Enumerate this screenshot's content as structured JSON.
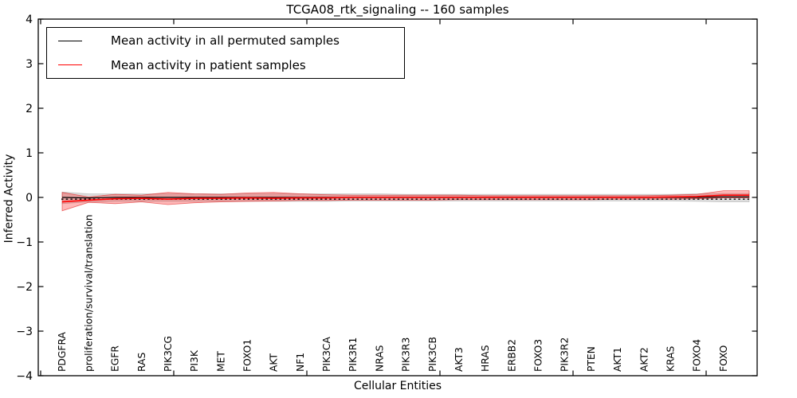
{
  "figure": {
    "title": "TCGA08_rtk_signaling -- 160 samples",
    "xlabel": "Cellular Entities",
    "ylabel": "Inferred Activity"
  },
  "legend": {
    "position": "upper left",
    "items": [
      {
        "label": "Mean activity in all permuted samples",
        "color": "#000000"
      },
      {
        "label": "Mean activity in patient samples",
        "color": "#ff0000"
      }
    ]
  },
  "chart_data": {
    "type": "line",
    "title": "TCGA08_rtk_signaling -- 160 samples",
    "xlabel": "Cellular Entities",
    "ylabel": "Inferred Activity",
    "ylim": [
      -4,
      4
    ],
    "ytick_labels": [
      "4",
      "3",
      "2",
      "1",
      "0",
      "−1",
      "−2",
      "−3",
      "−4"
    ],
    "grid": false,
    "legend_position": "upper left",
    "categories": [
      "PDGFRA",
      "proliferation/survival/translation",
      "EGFR",
      "RAS",
      "PIK3CG",
      "PI3K",
      "MET",
      "FOXO1",
      "AKT",
      "NF1",
      "PIK3CA",
      "PIK3R1",
      "NRAS",
      "PIK3R3",
      "PIK3CB",
      "AKT3",
      "HRAS",
      "ERBB2",
      "FOXO3",
      "PIK3R2",
      "PTEN",
      "AKT1",
      "AKT2",
      "KRAS",
      "FOXO4",
      "FOXO"
    ],
    "series": [
      {
        "name": "Mean activity in all permuted samples",
        "color": "#000000",
        "values": [
          0.0,
          -0.01,
          0.0,
          0.0,
          0.0,
          0.0,
          0.0,
          0.0,
          0.0,
          0.0,
          0.0,
          0.0,
          0.0,
          0.0,
          0.0,
          0.0,
          0.0,
          0.0,
          0.0,
          0.0,
          0.0,
          0.0,
          0.0,
          0.0,
          0.0,
          0.01
        ]
      },
      {
        "name": "Mean activity in patient samples",
        "color": "#ff0000",
        "values": [
          -0.1,
          -0.06,
          -0.03,
          -0.02,
          -0.04,
          -0.02,
          -0.02,
          -0.01,
          -0.02,
          -0.01,
          -0.01,
          0.0,
          0.0,
          0.0,
          0.0,
          0.0,
          0.0,
          0.0,
          0.0,
          0.0,
          0.0,
          0.0,
          0.0,
          0.01,
          0.02,
          0.05
        ]
      }
    ],
    "bands": [
      {
        "name": "permuted samples spread",
        "fill": "rgba(0,0,0,0.13)",
        "edge": "rgba(0,0,0,0.18)",
        "upper": [
          0.12,
          0.08,
          0.08,
          0.08,
          0.08,
          0.08,
          0.08,
          0.08,
          0.08,
          0.08,
          0.08,
          0.08,
          0.08,
          0.07,
          0.07,
          0.07,
          0.07,
          0.07,
          0.07,
          0.07,
          0.07,
          0.07,
          0.07,
          0.07,
          0.08,
          0.09
        ],
        "lower": [
          -0.14,
          -0.1,
          -0.09,
          -0.09,
          -0.09,
          -0.09,
          -0.09,
          -0.09,
          -0.09,
          -0.09,
          -0.09,
          -0.08,
          -0.08,
          -0.08,
          -0.08,
          -0.08,
          -0.08,
          -0.08,
          -0.08,
          -0.08,
          -0.08,
          -0.08,
          -0.08,
          -0.08,
          -0.09,
          -0.1
        ],
        "color": "#dcdcdc"
      },
      {
        "name": "patient samples spread",
        "fill": "rgba(255,0,0,0.28)",
        "edge": "rgba(220,0,0,0.55)",
        "upper": [
          0.11,
          0.01,
          0.07,
          0.05,
          0.11,
          0.08,
          0.07,
          0.1,
          0.11,
          0.08,
          0.06,
          0.05,
          0.05,
          0.05,
          0.05,
          0.05,
          0.04,
          0.04,
          0.04,
          0.04,
          0.04,
          0.04,
          0.04,
          0.05,
          0.07,
          0.15
        ],
        "lower": [
          -0.3,
          -0.11,
          -0.14,
          -0.1,
          -0.16,
          -0.12,
          -0.1,
          -0.09,
          -0.08,
          -0.07,
          -0.07,
          -0.06,
          -0.06,
          -0.06,
          -0.06,
          -0.05,
          -0.05,
          -0.05,
          -0.05,
          -0.05,
          -0.05,
          -0.04,
          -0.04,
          -0.04,
          -0.03,
          -0.01
        ],
        "color": "#f6b0b0"
      }
    ],
    "reference_line": {
      "y": -0.04,
      "style": "dotted",
      "color": "#000000"
    }
  }
}
